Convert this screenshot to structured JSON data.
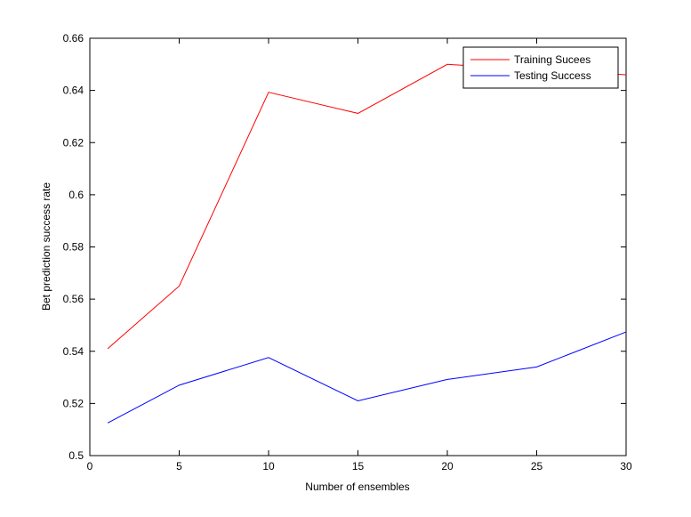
{
  "chart_data": {
    "type": "line",
    "title": "",
    "xlabel": "Number of ensembles",
    "ylabel": "Bet prediction success rate",
    "xlim": [
      0,
      30
    ],
    "ylim": [
      0.5,
      0.66
    ],
    "xticks": [
      0,
      5,
      10,
      15,
      20,
      25,
      30
    ],
    "yticks": [
      0.5,
      0.52,
      0.54,
      0.56,
      0.58,
      0.6,
      0.62,
      0.64,
      0.66
    ],
    "ytick_labels": [
      "0.5",
      "0.52",
      "0.54",
      "0.56",
      "0.58",
      "0.6",
      "0.62",
      "0.64",
      "0.66"
    ],
    "grid": false,
    "legend": "top-right",
    "series": [
      {
        "name": "Training Sucees",
        "color": "#ff0000",
        "x": [
          1,
          5,
          10,
          15,
          20,
          25,
          30
        ],
        "y": [
          0.541,
          0.565,
          0.6393,
          0.6312,
          0.65,
          0.648,
          0.646
        ]
      },
      {
        "name": "Testing Success",
        "color": "#0000ff",
        "x": [
          1,
          5,
          10,
          15,
          20,
          25,
          30
        ],
        "y": [
          0.5125,
          0.527,
          0.5376,
          0.521,
          0.5292,
          0.534,
          0.5474
        ]
      }
    ]
  }
}
